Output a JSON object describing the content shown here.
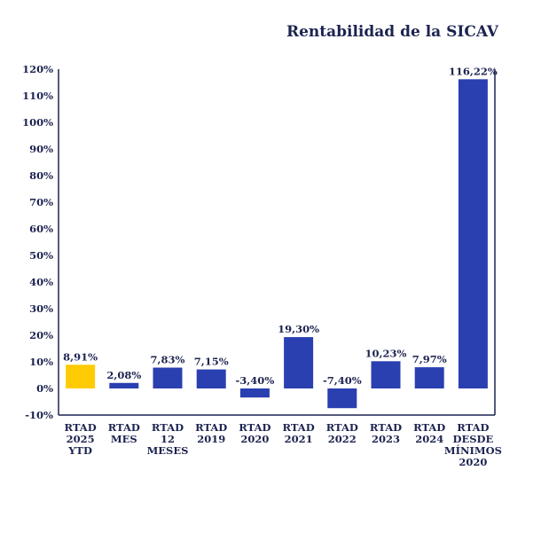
{
  "chart_data": {
    "type": "bar",
    "title": "Rentabilidad de la SICAV",
    "categories": [
      [
        "RTAD",
        "2025",
        "YTD"
      ],
      [
        "RTAD",
        "MES"
      ],
      [
        "RTAD",
        "12",
        "MESES"
      ],
      [
        "RTAD",
        "2019"
      ],
      [
        "RTAD",
        "2020"
      ],
      [
        "RTAD",
        "2021"
      ],
      [
        "RTAD",
        "2022"
      ],
      [
        "RTAD",
        "2023"
      ],
      [
        "RTAD",
        "2024"
      ],
      [
        "RTAD",
        "DESDE",
        "MÍNIMOS",
        "2020"
      ]
    ],
    "values": [
      8.91,
      2.08,
      7.83,
      7.15,
      -3.4,
      19.3,
      -7.4,
      10.23,
      7.97,
      116.22
    ],
    "data_labels": [
      "8,91%",
      "2,08%",
      "7,83%",
      "7,15%",
      "-3,40%",
      "19,30%",
      "-7,40%",
      "10,23%",
      "7,97%",
      "116,22%"
    ],
    "y_ticks": [
      "-10%",
      "0%",
      "10%",
      "20%",
      "30%",
      "40%",
      "50%",
      "60%",
      "70%",
      "80%",
      "90%",
      "100%",
      "110%",
      "120%"
    ],
    "ylim": [
      -10,
      120
    ],
    "grid": false,
    "colors": {
      "highlight": "#ffcb05",
      "bar": "#2a3fb0",
      "axis": "#1c2350",
      "text": "#1c2350"
    },
    "highlight_index": 0
  }
}
